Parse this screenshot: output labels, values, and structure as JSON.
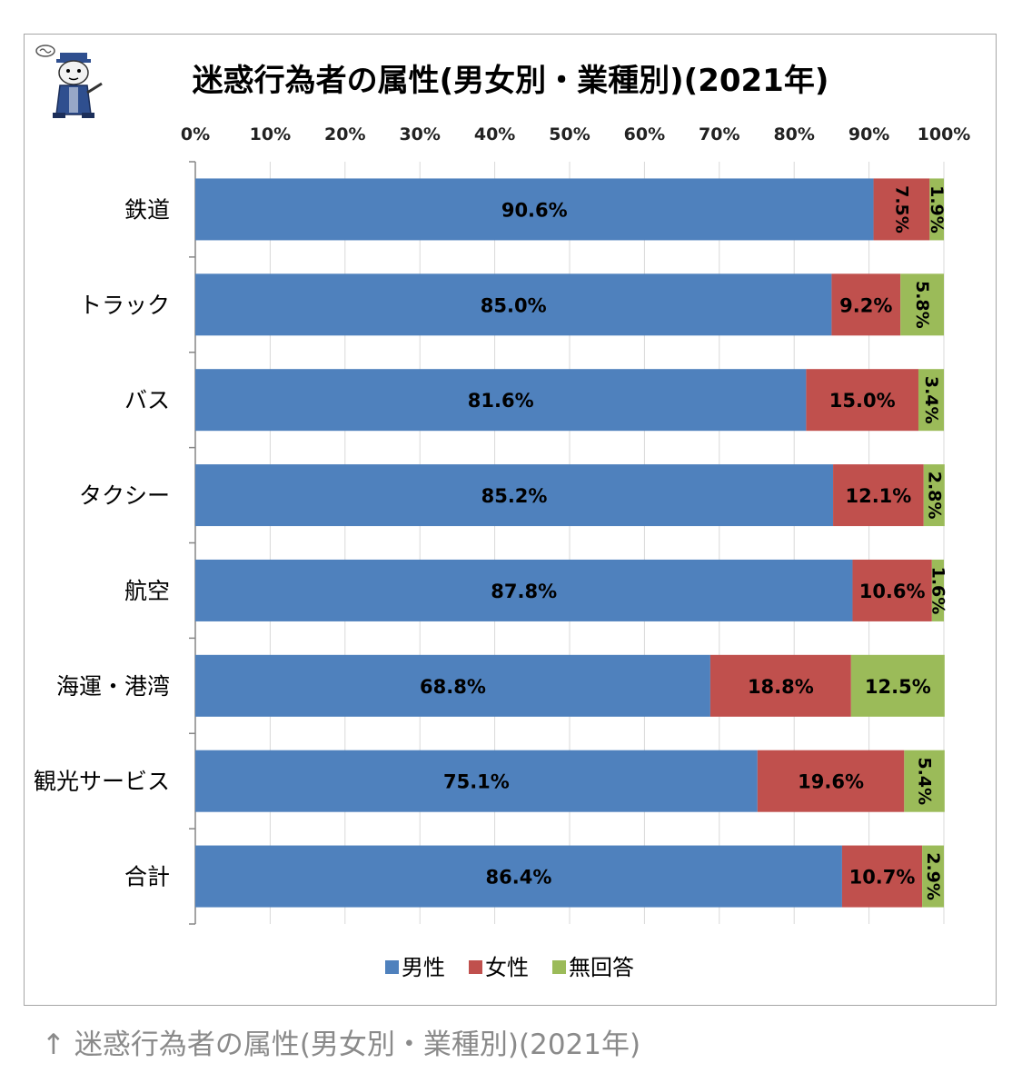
{
  "chart_data": {
    "type": "bar",
    "orientation": "horizontal",
    "stacked": "100%",
    "title": "迷惑行為者の属性(男女別・業種別)(2021年)",
    "x_ticks": [
      "0%",
      "10%",
      "20%",
      "30%",
      "40%",
      "50%",
      "60%",
      "70%",
      "80%",
      "90%",
      "100%"
    ],
    "xlim": [
      0,
      100
    ],
    "categories": [
      "鉄道",
      "トラック",
      "バス",
      "タクシー",
      "航空",
      "海運・港湾",
      "観光サービス",
      "合計"
    ],
    "series": [
      {
        "name": "男性",
        "color": "#4f81bd",
        "values": [
          90.6,
          85.0,
          81.6,
          85.2,
          87.8,
          68.8,
          75.1,
          86.4
        ],
        "labels": [
          "90.6%",
          "85.0%",
          "81.6%",
          "85.2%",
          "87.8%",
          "68.8%",
          "75.1%",
          "86.4%"
        ]
      },
      {
        "name": "女性",
        "color": "#c0504d",
        "values": [
          7.5,
          9.2,
          15.0,
          12.1,
          10.6,
          18.8,
          19.6,
          10.7
        ],
        "labels": [
          "7.5%",
          "9.2%",
          "15.0%",
          "12.1%",
          "10.6%",
          "18.8%",
          "19.6%",
          "10.7%"
        ]
      },
      {
        "name": "無回答",
        "color": "#9bbb59",
        "values": [
          1.9,
          5.8,
          3.4,
          2.8,
          1.6,
          12.5,
          5.4,
          2.9
        ],
        "labels": [
          "1.9%",
          "5.8%",
          "3.4%",
          "2.8%",
          "1.6%",
          "12.5%",
          "5.4%",
          "2.9%"
        ]
      }
    ],
    "grid": true,
    "legend_position": "bottom"
  },
  "caption": "↑ 迷惑行為者の属性(男女別・業種別)(2021年)",
  "colors": {
    "grid": "#d9d9d9",
    "axis": "#868686",
    "text": "#000000",
    "caption": "#8a8a8a"
  }
}
